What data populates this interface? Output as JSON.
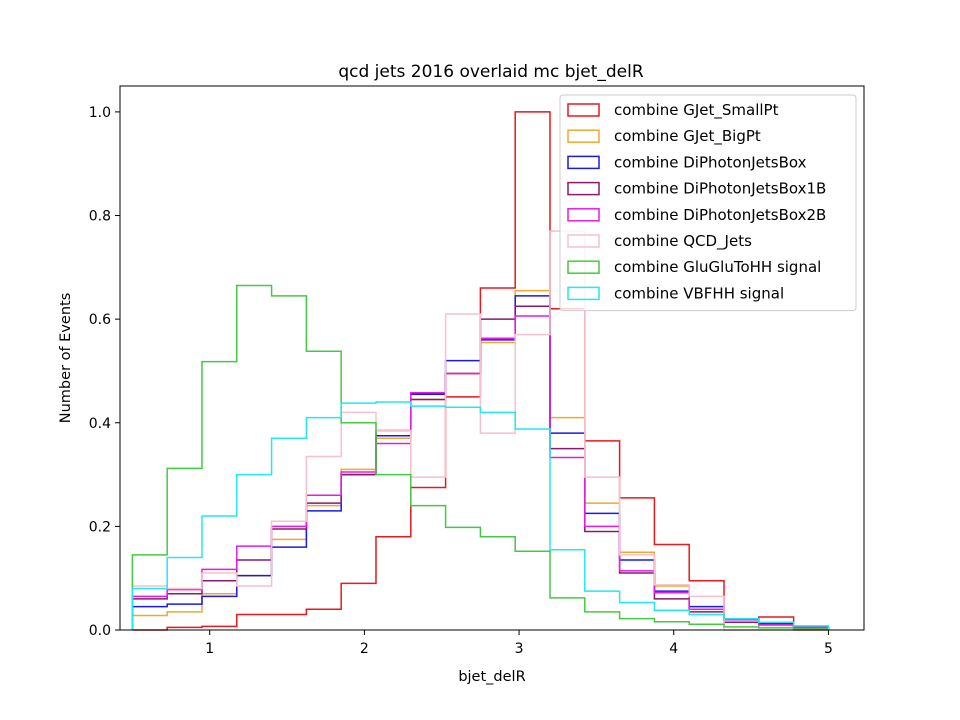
{
  "chart_data": {
    "type": "step-histogram",
    "title": "qcd jets 2016 overlaid mc bjet_delR",
    "xlabel": "bjet_delR",
    "ylabel": "Number of Events",
    "xlim": [
      0.42,
      5.23
    ],
    "ylim": [
      0,
      1.05
    ],
    "xticks": [
      1,
      2,
      3,
      4,
      5
    ],
    "yticks": [
      0.0,
      0.2,
      0.4,
      0.6,
      0.8,
      1.0
    ],
    "grid": false,
    "legend_position": "top-right",
    "bin_edges": [
      0.5,
      0.725,
      0.95,
      1.175,
      1.4,
      1.625,
      1.85,
      2.075,
      2.3,
      2.525,
      2.75,
      2.975,
      3.2,
      3.425,
      3.65,
      3.875,
      4.1,
      4.325,
      4.55,
      4.775,
      5.0
    ],
    "series": [
      {
        "name": "combine GJet_SmallPt",
        "color": "#e8191c",
        "values": [
          0.0,
          0.005,
          0.007,
          0.03,
          0.03,
          0.04,
          0.09,
          0.18,
          0.275,
          0.45,
          0.66,
          1.0,
          0.62,
          0.365,
          0.255,
          0.165,
          0.095,
          0.02,
          0.025,
          0.0
        ]
      },
      {
        "name": "combine GJet_BigPt",
        "color": "#f0a830",
        "values": [
          0.028,
          0.035,
          0.07,
          0.105,
          0.175,
          0.24,
          0.31,
          0.37,
          0.445,
          0.495,
          0.555,
          0.655,
          0.41,
          0.245,
          0.15,
          0.085,
          0.04,
          0.02,
          0.01,
          0.005
        ]
      },
      {
        "name": "combine DiPhotonJetsBox",
        "color": "#1a1ae6",
        "values": [
          0.045,
          0.05,
          0.065,
          0.105,
          0.16,
          0.23,
          0.3,
          0.375,
          0.455,
          0.52,
          0.56,
          0.645,
          0.38,
          0.225,
          0.135,
          0.075,
          0.045,
          0.02,
          0.012,
          0.005
        ]
      },
      {
        "name": "combine DiPhotonJetsBox1B",
        "color": "#8a1a6e",
        "values": [
          0.06,
          0.07,
          0.095,
          0.135,
          0.195,
          0.245,
          0.3,
          0.385,
          0.445,
          0.495,
          0.6,
          0.625,
          0.35,
          0.19,
          0.11,
          0.06,
          0.035,
          0.015,
          0.01,
          0.005
        ]
      },
      {
        "name": "combine DiPhotonJetsBox2B",
        "color": "#e81ae8",
        "values": [
          0.065,
          0.078,
          0.117,
          0.162,
          0.2,
          0.26,
          0.305,
          0.36,
          0.458,
          0.495,
          0.563,
          0.606,
          0.333,
          0.2,
          0.114,
          0.072,
          0.04,
          0.02,
          0.01,
          0.005
        ]
      },
      {
        "name": "combine QCD_Jets",
        "color": "#f6c0cc",
        "values": [
          0.085,
          0.08,
          0.11,
          0.085,
          0.21,
          0.335,
          0.42,
          0.385,
          0.295,
          0.61,
          0.38,
          0.57,
          0.77,
          0.295,
          0.145,
          0.087,
          0.065,
          0.0,
          0.0,
          0.0
        ]
      },
      {
        "name": "combine GluGluToHH signal",
        "color": "#44c944",
        "values": [
          0.145,
          0.312,
          0.518,
          0.665,
          0.645,
          0.538,
          0.4,
          0.3,
          0.24,
          0.198,
          0.18,
          0.152,
          0.062,
          0.035,
          0.022,
          0.016,
          0.011,
          0.006,
          0.004,
          0.002
        ]
      },
      {
        "name": "combine VBFHH signal",
        "color": "#22e8f0",
        "values": [
          0.08,
          0.14,
          0.22,
          0.3,
          0.37,
          0.41,
          0.438,
          0.44,
          0.432,
          0.43,
          0.42,
          0.388,
          0.155,
          0.075,
          0.053,
          0.038,
          0.03,
          0.022,
          0.015,
          0.008
        ]
      }
    ]
  }
}
